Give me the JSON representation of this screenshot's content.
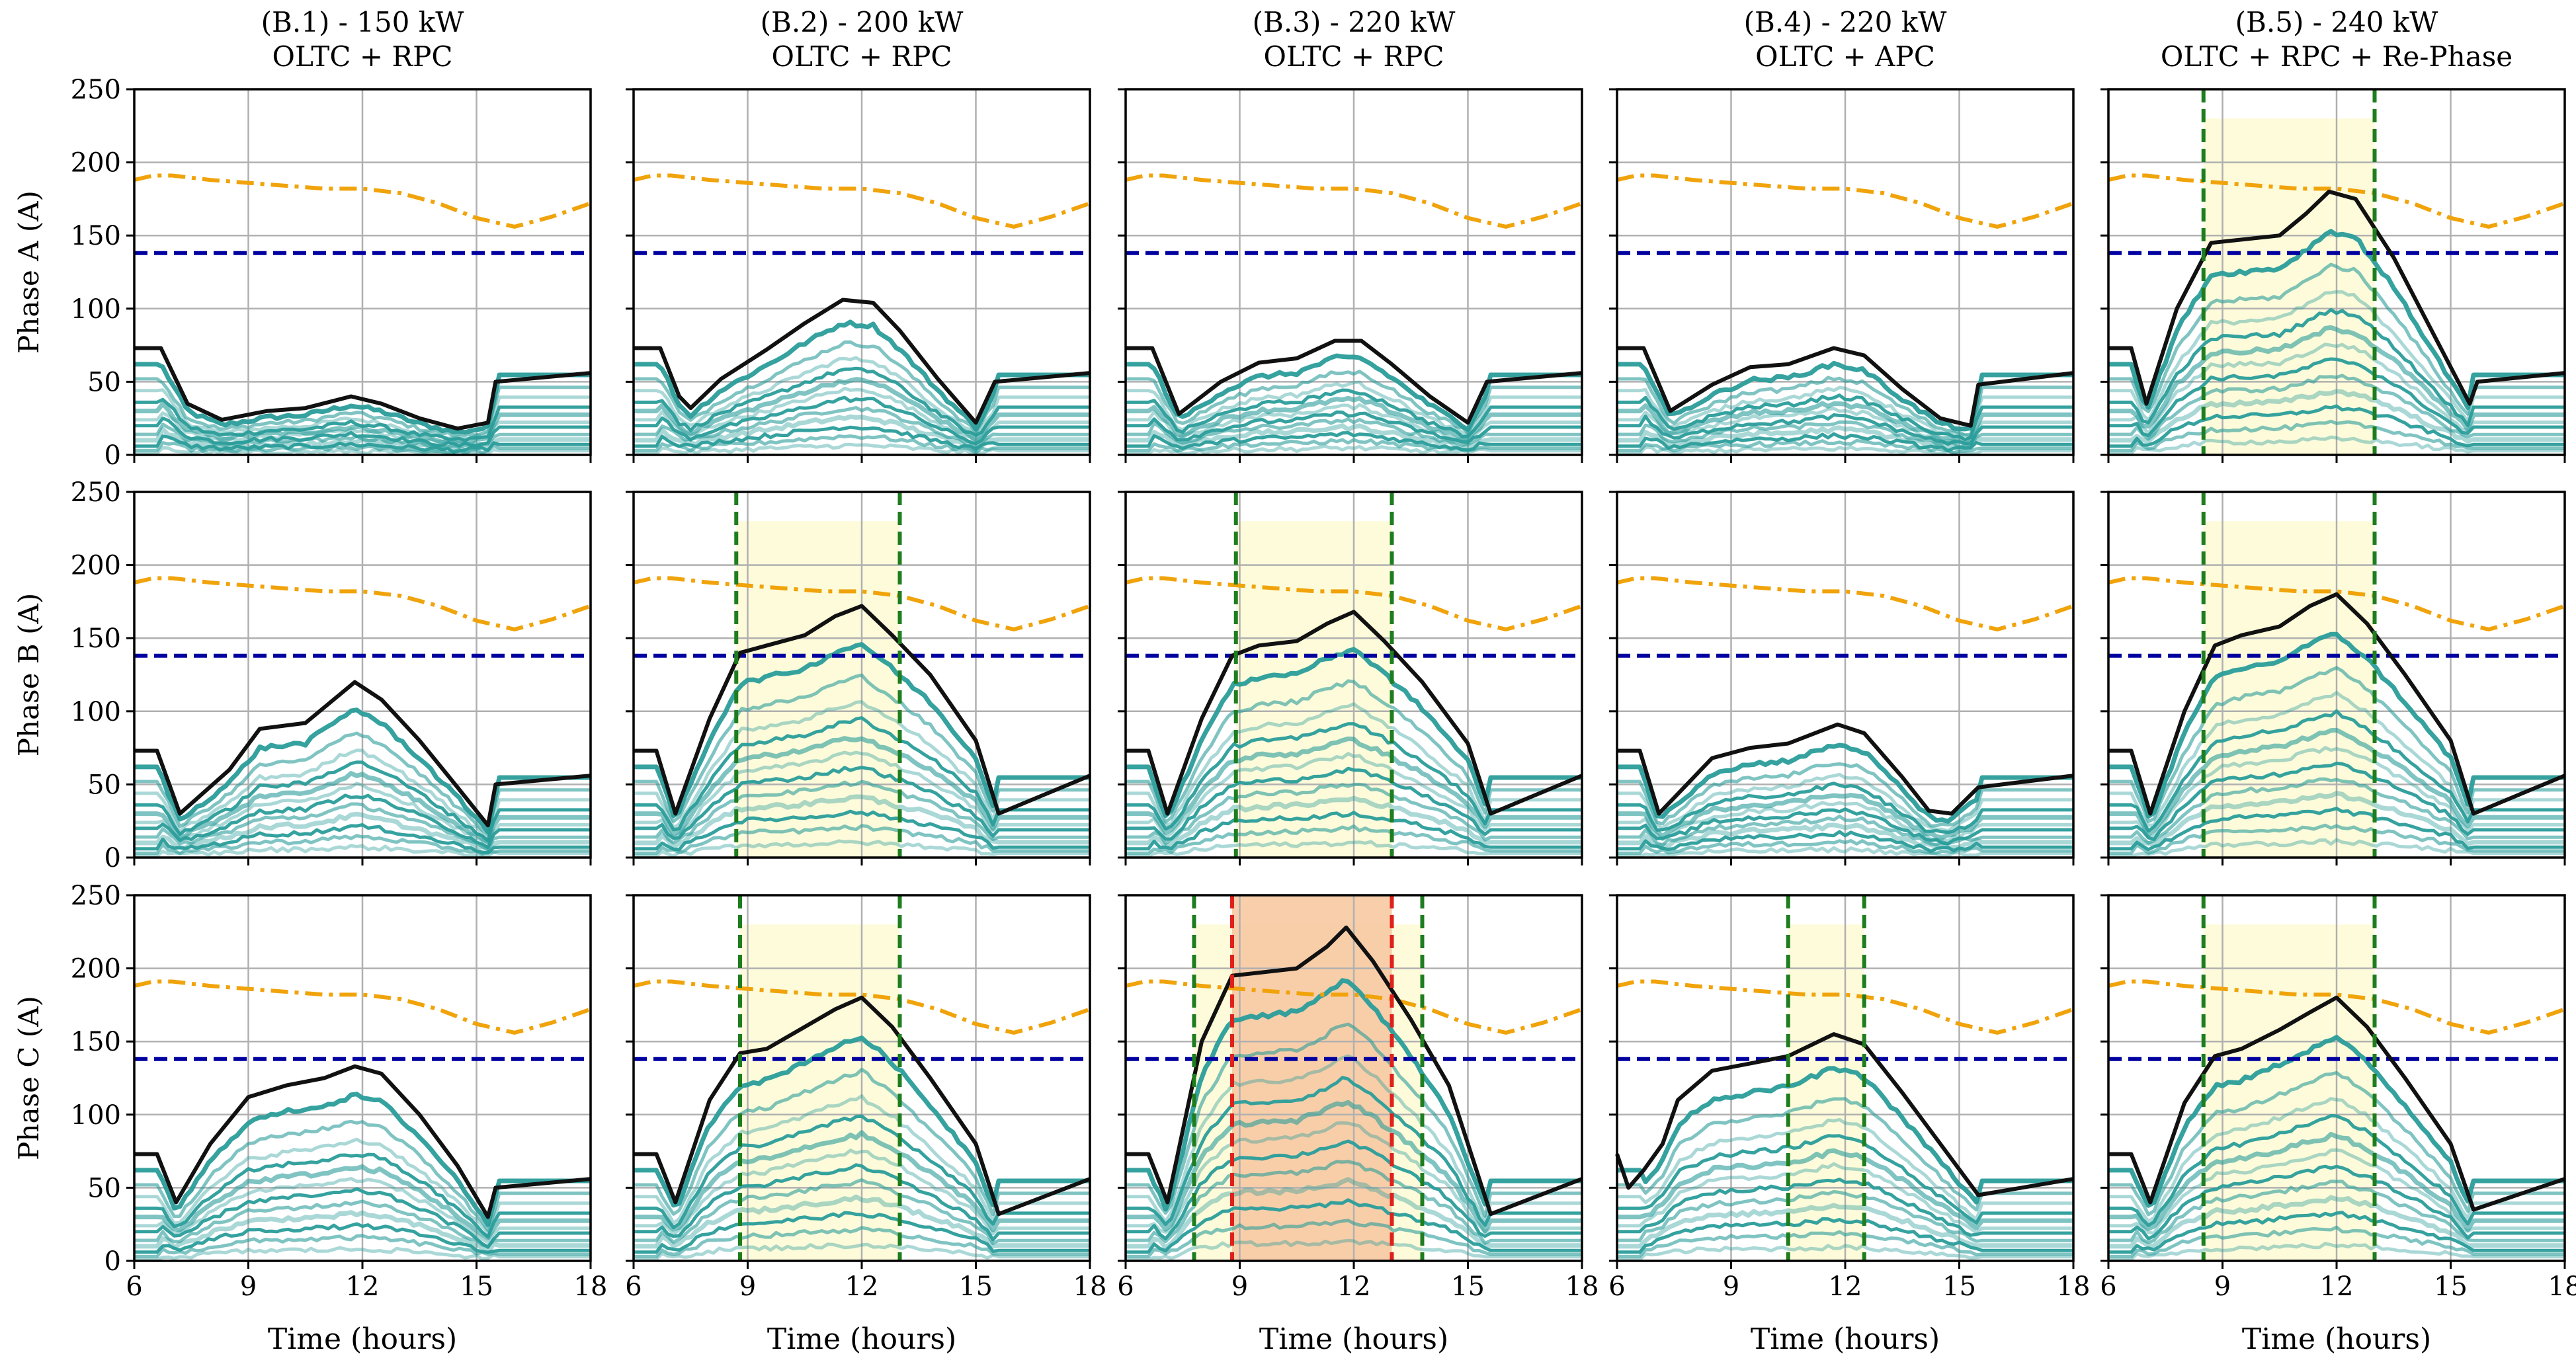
{
  "chart_data": {
    "type": "line",
    "figure": "5x3 grid of phase current profiles",
    "columns": [
      {
        "title_line1": "(B.1) - 150 kW",
        "title_line2": "OLTC + RPC"
      },
      {
        "title_line1": "(B.2) - 200 kW",
        "title_line2": "OLTC + RPC"
      },
      {
        "title_line1": "(B.3) - 220 kW",
        "title_line2": "OLTC + RPC"
      },
      {
        "title_line1": "(B.4) - 220 kW",
        "title_line2": "OLTC + APC"
      },
      {
        "title_line1": "(B.5) - 240 kW",
        "title_line2": "OLTC + RPC + Re-Phase"
      }
    ],
    "rows": [
      {
        "ylabel": "Phase A (A)"
      },
      {
        "ylabel": "Phase B (A)"
      },
      {
        "ylabel": "Phase C (A)"
      }
    ],
    "xlabel": "Time (hours)",
    "xlim": [
      6,
      18
    ],
    "ylim": [
      0,
      250
    ],
    "xticks": [
      6,
      9,
      12,
      15,
      18
    ],
    "yticks": [
      0,
      50,
      100,
      150,
      200,
      250
    ],
    "grid": true,
    "reference_lines": {
      "current_limit": {
        "value": 138,
        "style": "dashed",
        "color": "#0000a0"
      },
      "transformer_rating": {
        "style": "dash-dot",
        "color": "#f0a30a",
        "x": [
          6,
          6.5,
          7,
          8,
          9,
          10,
          11,
          12,
          13,
          14,
          15,
          16,
          17,
          18
        ],
        "y": [
          188,
          191,
          191,
          188,
          186,
          184,
          182,
          182,
          179,
          172,
          162,
          156,
          163,
          172
        ]
      }
    },
    "panels": [
      {
        "row": 0,
        "col": 0,
        "envelope": {
          "x": [
            6,
            6.7,
            7.4,
            8.3,
            9.5,
            10.5,
            11.7,
            12.5,
            13.5,
            14.5,
            15.3,
            15.5,
            18
          ],
          "y": [
            73,
            73,
            35,
            24,
            30,
            32,
            40,
            35,
            25,
            18,
            22,
            50,
            56
          ]
        },
        "violations": []
      },
      {
        "row": 0,
        "col": 1,
        "envelope": {
          "x": [
            6,
            6.7,
            7.2,
            7.5,
            8.3,
            9.5,
            10.5,
            11.5,
            12.3,
            13,
            14,
            15,
            15.5,
            18
          ],
          "y": [
            73,
            73,
            40,
            32,
            52,
            72,
            90,
            106,
            104,
            85,
            52,
            22,
            50,
            56
          ]
        },
        "violations": []
      },
      {
        "row": 0,
        "col": 2,
        "envelope": {
          "x": [
            6,
            6.7,
            7.4,
            8.5,
            9.5,
            10.5,
            11.5,
            12.2,
            13,
            14,
            15,
            15.5,
            18
          ],
          "y": [
            73,
            73,
            28,
            50,
            63,
            66,
            78,
            78,
            62,
            40,
            22,
            50,
            56
          ]
        },
        "violations": []
      },
      {
        "row": 0,
        "col": 3,
        "envelope": {
          "x": [
            6,
            6.7,
            7.4,
            8.5,
            9.5,
            10.5,
            11.7,
            12.5,
            13.5,
            14.5,
            15.3,
            15.5,
            18
          ],
          "y": [
            73,
            73,
            30,
            48,
            60,
            62,
            73,
            68,
            45,
            25,
            20,
            48,
            56
          ]
        },
        "violations": []
      },
      {
        "row": 0,
        "col": 4,
        "envelope": {
          "x": [
            6,
            6.6,
            7,
            7.8,
            8.7,
            10.5,
            11.2,
            11.8,
            12.5,
            13.5,
            14.5,
            15.5,
            15.7,
            18
          ],
          "y": [
            73,
            73,
            35,
            100,
            145,
            150,
            165,
            180,
            175,
            135,
            85,
            35,
            50,
            56
          ]
        },
        "violations": [
          {
            "from": 8.5,
            "to": 13.0,
            "level": "minor"
          }
        ]
      },
      {
        "row": 1,
        "col": 0,
        "envelope": {
          "x": [
            6,
            6.6,
            7.2,
            8.5,
            9.3,
            10.5,
            11.8,
            12.5,
            13.5,
            14.5,
            15.3,
            15.5,
            18
          ],
          "y": [
            73,
            73,
            30,
            60,
            88,
            92,
            120,
            108,
            80,
            48,
            22,
            50,
            56
          ]
        },
        "violations": []
      },
      {
        "row": 1,
        "col": 1,
        "envelope": {
          "x": [
            6,
            6.6,
            7.1,
            8,
            8.8,
            9.5,
            10.5,
            11.3,
            12,
            12.8,
            13.8,
            15,
            15.6,
            18
          ],
          "y": [
            73,
            73,
            30,
            95,
            140,
            145,
            152,
            165,
            172,
            152,
            125,
            80,
            30,
            56
          ]
        },
        "violations": [
          {
            "from": 8.7,
            "to": 13.0,
            "level": "minor"
          }
        ]
      },
      {
        "row": 1,
        "col": 2,
        "envelope": {
          "x": [
            6,
            6.6,
            7.1,
            8,
            8.8,
            9.5,
            10.5,
            11.3,
            12,
            12.8,
            13.8,
            15,
            15.6,
            18
          ],
          "y": [
            73,
            73,
            30,
            95,
            138,
            145,
            148,
            160,
            168,
            148,
            120,
            78,
            30,
            56
          ]
        },
        "violations": [
          {
            "from": 8.9,
            "to": 13.0,
            "level": "minor"
          }
        ]
      },
      {
        "row": 1,
        "col": 3,
        "envelope": {
          "x": [
            6,
            6.6,
            7.1,
            8.5,
            9.5,
            10.5,
            11.8,
            12.5,
            13.5,
            14.2,
            14.8,
            15.5,
            18
          ],
          "y": [
            73,
            73,
            30,
            68,
            75,
            78,
            91,
            85,
            55,
            32,
            30,
            48,
            56
          ]
        },
        "violations": []
      },
      {
        "row": 1,
        "col": 4,
        "envelope": {
          "x": [
            6,
            6.6,
            7.1,
            8,
            8.8,
            9.5,
            10.5,
            11.3,
            12,
            12.8,
            13.8,
            15,
            15.6,
            18
          ],
          "y": [
            73,
            73,
            30,
            100,
            145,
            152,
            158,
            172,
            180,
            160,
            125,
            80,
            30,
            56
          ]
        },
        "violations": [
          {
            "from": 8.5,
            "to": 13.0,
            "level": "minor"
          }
        ]
      },
      {
        "row": 2,
        "col": 0,
        "envelope": {
          "x": [
            6,
            6.6,
            7.1,
            8,
            9,
            10,
            11,
            11.8,
            12.5,
            13.5,
            14.5,
            15.3,
            15.5,
            18
          ],
          "y": [
            73,
            73,
            40,
            80,
            112,
            120,
            125,
            133,
            128,
            100,
            65,
            30,
            50,
            56
          ]
        },
        "violations": []
      },
      {
        "row": 2,
        "col": 1,
        "envelope": {
          "x": [
            6,
            6.6,
            7.1,
            8,
            8.8,
            9.5,
            10.5,
            11.3,
            12,
            12.8,
            13.8,
            15,
            15.6,
            18
          ],
          "y": [
            73,
            73,
            40,
            110,
            142,
            145,
            160,
            172,
            180,
            160,
            125,
            80,
            32,
            56
          ]
        },
        "violations": [
          {
            "from": 8.8,
            "to": 13.0,
            "level": "minor"
          }
        ]
      },
      {
        "row": 2,
        "col": 2,
        "envelope": {
          "x": [
            6,
            6.6,
            7.1,
            8,
            8.8,
            9.5,
            10.5,
            11.3,
            11.8,
            12.5,
            13.5,
            14.5,
            15.6,
            18
          ],
          "y": [
            73,
            73,
            40,
            150,
            195,
            197,
            200,
            215,
            228,
            205,
            165,
            120,
            32,
            56
          ]
        },
        "violations": [
          {
            "from": 7.8,
            "to": 13.8,
            "level": "minor"
          },
          {
            "from": 8.8,
            "to": 13.0,
            "level": "major"
          }
        ]
      },
      {
        "row": 2,
        "col": 3,
        "envelope": {
          "x": [
            6,
            6.3,
            6.7,
            7.2,
            7.6,
            8.5,
            9.5,
            10.5,
            11.7,
            12.5,
            13.5,
            14.5,
            15.5,
            18
          ],
          "y": [
            73,
            50,
            62,
            80,
            110,
            130,
            135,
            140,
            155,
            148,
            115,
            80,
            45,
            56
          ]
        },
        "violations": [
          {
            "from": 10.5,
            "to": 12.5,
            "level": "minor"
          }
        ]
      },
      {
        "row": 2,
        "col": 4,
        "envelope": {
          "x": [
            6,
            6.6,
            7.1,
            8,
            8.8,
            9.5,
            10.5,
            11.3,
            12,
            12.8,
            13.8,
            15,
            15.6,
            18
          ],
          "y": [
            73,
            73,
            40,
            108,
            140,
            145,
            158,
            170,
            180,
            160,
            125,
            80,
            35,
            56
          ]
        },
        "violations": [
          {
            "from": 8.5,
            "to": 13.0,
            "level": "minor"
          }
        ]
      }
    ]
  }
}
